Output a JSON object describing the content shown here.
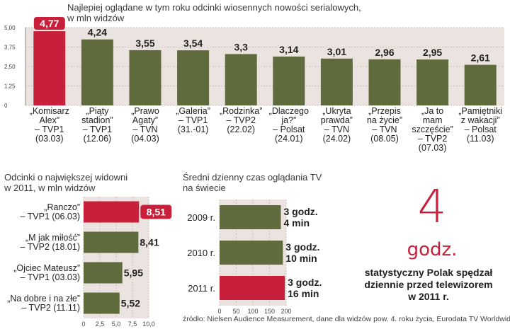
{
  "titles": {
    "chart1": "Najlepiej oglądane w tym roku odcinki wiosennych nowości serialowych,\nw mln widzów",
    "chart2": "Odcinki o największej widowni\nw 2011, w mln widzów",
    "chart3": "Średni dzienny czas oglądania TV\nna świecie"
  },
  "colors": {
    "bar": "#5f6b3c",
    "highlight": "#c8203a",
    "panel": "#ebe3df",
    "grid": "#c9c0bb"
  },
  "chart_data": [
    {
      "type": "bar",
      "title": "Najlepiej oglądane w tym roku odcinki wiosennych nowości serialowych, w mln widzów",
      "categories": [
        "„Komisarz\nAlex”\n– TVP1\n(03.03)",
        "„Piąty\nstadion”\n– TVP1\n(12.06)",
        "„Prawo\nAgaty”\n– TVN\n(04.03)",
        "„Galeria”\n– TVP1\n(31.-01)",
        "„Rodzinka”\n– TVP2\n(22.02)",
        "„Dlaczego\nja?”\n– Polsat\n(24.01)",
        "„Ukryta\nprawda”\n– TVN\n(24.02)",
        "„Przepis\nna życie”\n– TVN\n(08.05)",
        "„Ja to\nmam\nszczęście”\n– TVP2\n(07.03)",
        "„Pamiętniki\nz wakacji”\n– Polsat\n(11.03)"
      ],
      "values": [
        4.77,
        4.24,
        3.55,
        3.54,
        3.3,
        3.14,
        3.01,
        2.96,
        2.95,
        2.61
      ],
      "value_labels": [
        "4,77",
        "4,24",
        "3,55",
        "3,54",
        "3,3",
        "3,14",
        "3,01",
        "2,96",
        "2,95",
        "2,61"
      ],
      "highlight_index": 0,
      "ylim": [
        0,
        5
      ],
      "yticks": [
        "0",
        "1,25",
        "2,50",
        "3,75",
        "5,00"
      ],
      "grid": true
    },
    {
      "type": "bar",
      "orientation": "horizontal",
      "title": "Odcinki o największej widowni w 2011, w mln widzów",
      "categories": [
        "„Ranczo”\n– TVP1 (06.03)",
        "„M jak miłość”\n– TVP2 (18.01)",
        "„Ojciec Mateusz”\n– TVP1 (03.03)",
        "„Na dobre i na złe”\n– TVP2 (11.11)"
      ],
      "values": [
        8.51,
        8.41,
        5.95,
        5.52
      ],
      "value_labels": [
        "8,51",
        "8,41",
        "5,95",
        "5,52"
      ],
      "highlight_index": 0,
      "xlim": [
        0,
        10
      ],
      "xticks": [
        "0",
        "2,5",
        "5,0",
        "7,5",
        "10,0"
      ],
      "grid": true
    },
    {
      "type": "bar",
      "orientation": "horizontal",
      "title": "Średni dzienny czas oglądania TV na świecie",
      "categories": [
        "2009 r.",
        "2010 r.",
        "2011 r."
      ],
      "values": [
        184,
        190,
        196
      ],
      "value_labels": [
        "3 godz.\n4 min",
        "3 godz.\n10 min",
        "3 godz.\n16 min"
      ],
      "highlight_index": 2,
      "xlim": [
        0,
        200
      ],
      "xticks": [
        "0",
        "50",
        "100",
        "150",
        "200"
      ],
      "grid": true
    }
  ],
  "callout": {
    "number": "4",
    "unit": "godz.",
    "caption": "statystyczny Polak spędzał\ndziennie przed telewizorem\nw 2011 r."
  },
  "source": "źródło: Nielsen Audience Measurement, dane dla widzów pow. 4. roku życia, Eurodata TV Worldwide"
}
